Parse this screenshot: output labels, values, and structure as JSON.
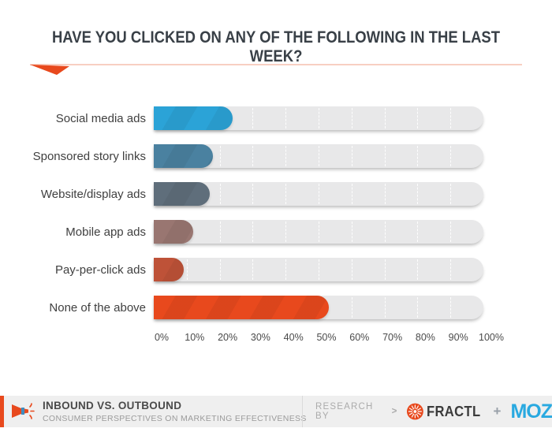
{
  "title": "HAVE YOU CLICKED ON ANY OF THE FOLLOWING IN THE LAST WEEK?",
  "chart_data": {
    "type": "bar",
    "orientation": "horizontal",
    "title": "HAVE YOU CLICKED ON ANY OF THE FOLLOWING IN THE LAST WEEK?",
    "categories": [
      "Social media ads",
      "Sponsored story links",
      "Website/display ads",
      "Mobile app ads",
      "Pay-per-click ads",
      "None of the above"
    ],
    "values": [
      24,
      18,
      17,
      12,
      9,
      53
    ],
    "value_unit": "%",
    "xlim": [
      0,
      100
    ],
    "x_tick_labels": [
      "0%",
      "10%",
      "20%",
      "30%",
      "40%",
      "50%",
      "60%",
      "70%",
      "80%",
      "90%",
      "100%"
    ],
    "bar_colors": [
      "#2BA3D7",
      "#4A81A0",
      "#5F6E7B",
      "#997671",
      "#BE5238",
      "#E8491D"
    ],
    "track_color": "#E8E8E9",
    "grid": "white dashed vertical lines every 10%",
    "legend": "none"
  },
  "footer": {
    "brand_title": "INBOUND VS. OUTBOUND",
    "brand_subtitle": "CONSUMER PERSPECTIVES ON MARKETING EFFECTIVENESS",
    "research_by": "RESEARCH BY",
    "research_arrow": ">",
    "fractl_label": "FRACTL",
    "plus": "+",
    "moz_label": "MOZ"
  },
  "colors": {
    "accent": "#E8491D",
    "underline": "#F8CFC2",
    "track": "#E8E8E9",
    "moz-blue": "#29A9E0"
  }
}
